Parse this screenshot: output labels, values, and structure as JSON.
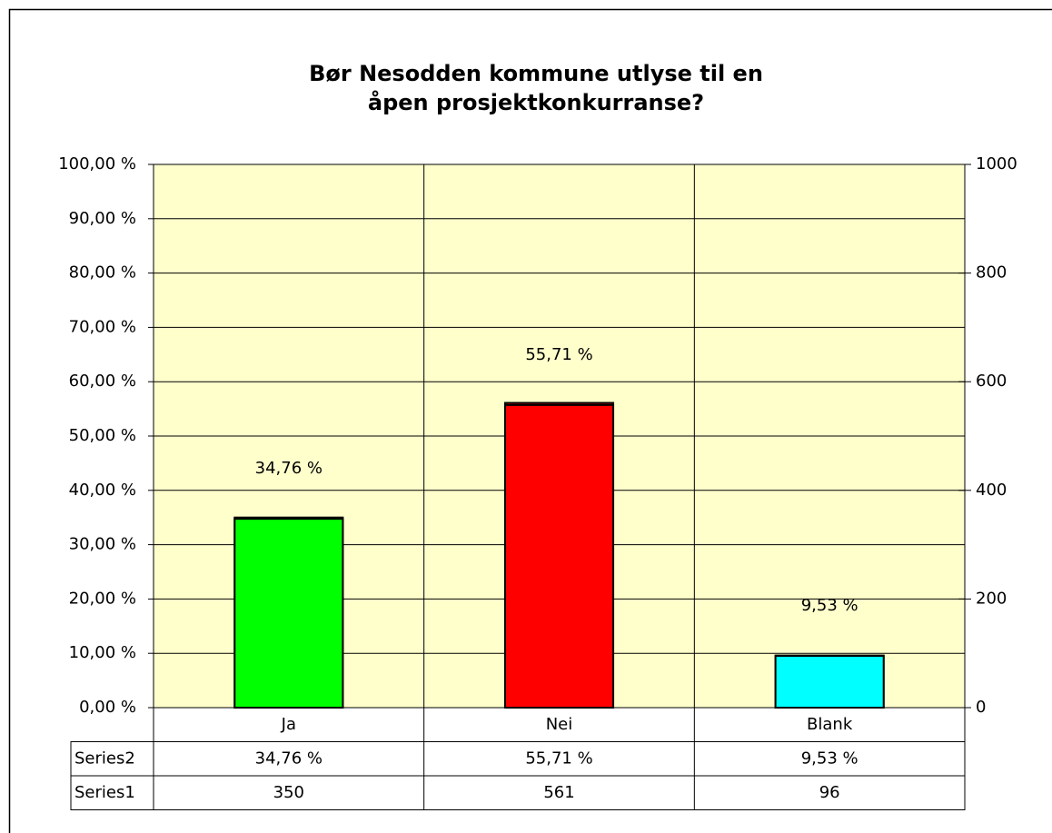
{
  "chart_data": {
    "type": "bar",
    "title": "Bør Nesodden kommune utlyse til en åpen prosjektkonkurranse?",
    "categories": [
      "Ja",
      "Nei",
      "Blank"
    ],
    "series": [
      {
        "name": "Series2",
        "colors": [
          "#00ff00",
          "#ff0000",
          "#00ffff"
        ],
        "values": [
          34.76,
          55.71,
          9.53
        ],
        "value_labels": [
          "34,76 %",
          "55,71 %",
          "9,53 %"
        ]
      },
      {
        "name": "Series1",
        "axis": "y2",
        "colors": [
          "#00ff00",
          "#ff0000",
          "#00ffff"
        ],
        "values": [
          350,
          561,
          96
        ]
      }
    ],
    "ylim": [
      0,
      100
    ],
    "yticks": [
      {
        "value": 0,
        "label": "0,00 %"
      },
      {
        "value": 10,
        "label": "10,00 %"
      },
      {
        "value": 20,
        "label": "20,00 %"
      },
      {
        "value": 30,
        "label": "30,00 %"
      },
      {
        "value": 40,
        "label": "40,00 %"
      },
      {
        "value": 50,
        "label": "50,00 %"
      },
      {
        "value": 60,
        "label": "60,00 %"
      },
      {
        "value": 70,
        "label": "70,00 %"
      },
      {
        "value": 80,
        "label": "80,00 %"
      },
      {
        "value": 90,
        "label": "90,00 %"
      },
      {
        "value": 100,
        "label": "100,00 %"
      }
    ],
    "y2lim": [
      0,
      1000
    ],
    "y2ticks": [
      0,
      200,
      400,
      600,
      800,
      1000
    ],
    "grid": true,
    "data_table": true
  }
}
